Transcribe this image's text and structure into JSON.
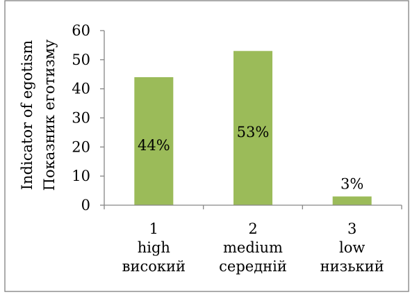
{
  "chart_data": {
    "type": "bar",
    "categories": [
      [
        "1",
        "high",
        "високий"
      ],
      [
        "2",
        "medium",
        "середній"
      ],
      [
        "3",
        "low",
        "низький"
      ]
    ],
    "values": [
      44,
      53,
      3
    ],
    "data_labels": [
      "44%",
      "53%",
      "3%"
    ],
    "title": "",
    "xlabel": "",
    "ylabel": [
      "Indicator of  egotism",
      "Показник еготизму"
    ],
    "ylim": [
      0,
      60
    ],
    "y_ticks": [
      0,
      10,
      20,
      30,
      40,
      50,
      60
    ],
    "grid": false,
    "legend": "none",
    "colors": {
      "bar": "#9bbb59",
      "axis": "#868686",
      "frame": "#7f7f7f"
    }
  }
}
